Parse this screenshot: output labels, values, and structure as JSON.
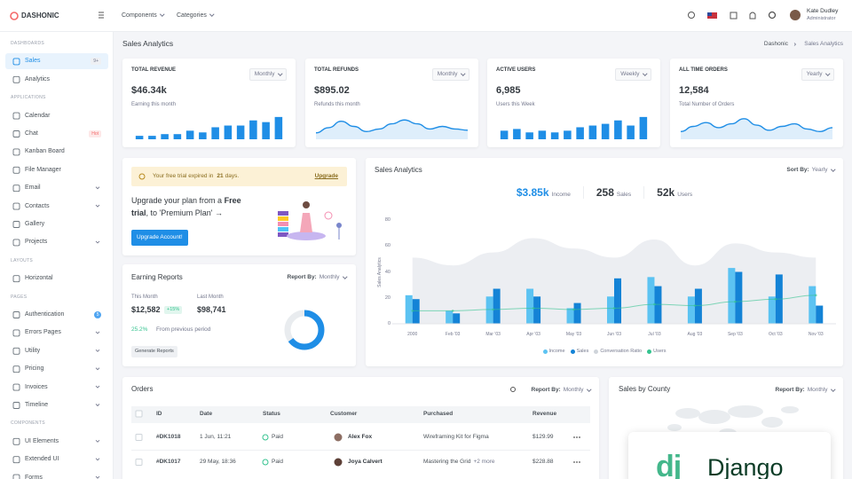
{
  "header": {
    "logo": "DASHONIC",
    "menus": [
      "Components",
      "Categories"
    ],
    "user": {
      "name": "Kate Dudley",
      "role": "Administrator"
    }
  },
  "sidebar": {
    "sections": [
      {
        "title": "DASHBOARDS",
        "items": [
          {
            "label": "Sales",
            "badge": "9+",
            "badge_style": "light",
            "active": true
          },
          {
            "label": "Analytics"
          }
        ]
      },
      {
        "title": "APPLICATIONS",
        "items": [
          {
            "label": "Calendar"
          },
          {
            "label": "Chat",
            "badge": "Hot",
            "badge_style": "danger"
          },
          {
            "label": "Kanban Board"
          },
          {
            "label": "File Manager"
          },
          {
            "label": "Email",
            "submenu": true
          },
          {
            "label": "Contacts",
            "submenu": true
          },
          {
            "label": "Gallery"
          },
          {
            "label": "Projects",
            "submenu": true
          }
        ]
      },
      {
        "title": "LAYOUTS",
        "items": [
          {
            "label": "Horizontal"
          }
        ]
      },
      {
        "title": "PAGES",
        "items": [
          {
            "label": "Authentication",
            "badge": "5",
            "badge_style": "primary"
          },
          {
            "label": "Errors Pages",
            "submenu": true
          },
          {
            "label": "Utility",
            "submenu": true
          },
          {
            "label": "Pricing",
            "submenu": true
          },
          {
            "label": "Invoices",
            "submenu": true
          },
          {
            "label": "Timeline",
            "submenu": true
          }
        ]
      },
      {
        "title": "COMPONENTS",
        "items": [
          {
            "label": "UI Elements",
            "submenu": true
          },
          {
            "label": "Extended UI",
            "submenu": true
          },
          {
            "label": "Forms",
            "submenu": true
          }
        ]
      }
    ]
  },
  "page": {
    "title": "Sales Analytics",
    "breadcrumb": [
      "Dashonic",
      "Sales Analytics"
    ]
  },
  "stats": [
    {
      "label": "TOTAL REVENUE",
      "period": "Monthly",
      "value": "$46.34k",
      "sub": "Earning this month",
      "chart": {
        "type": "bar",
        "color": "#1f8ee6",
        "ylim": [
          0,
          15
        ],
        "values": [
          2,
          2,
          3,
          3,
          5,
          4,
          7,
          8,
          8,
          11,
          10,
          13
        ]
      }
    },
    {
      "label": "TOTAL REFUNDS",
      "period": "Monthly",
      "value": "$895.02",
      "sub": "Refunds this month",
      "chart": {
        "type": "area",
        "color": "#1f8ee6",
        "ylim": [
          0,
          40
        ],
        "values": [
          10,
          18,
          28,
          20,
          12,
          16,
          24,
          30,
          24,
          16,
          20,
          16,
          14
        ]
      }
    },
    {
      "label": "ACTIVE USERS",
      "period": "Weekly",
      "value": "6,985",
      "sub": "Users this Week",
      "chart": {
        "type": "bar",
        "color": "#1f8ee6",
        "ylim": [
          0,
          15
        ],
        "values": [
          5,
          6,
          4,
          5,
          4,
          5,
          7,
          8,
          9,
          11,
          8,
          13
        ]
      }
    },
    {
      "label": "ALL TIME ORDERS",
      "period": "Yearly",
      "value": "12,584",
      "sub": "Total Number of Orders",
      "chart": {
        "type": "area",
        "color": "#1f8ee6",
        "ylim": [
          0,
          40
        ],
        "values": [
          12,
          20,
          26,
          18,
          24,
          32,
          22,
          14,
          20,
          24,
          16,
          12,
          18
        ]
      }
    }
  ],
  "trial": {
    "alert_pre": "Your free trial expired in",
    "alert_days": "21",
    "alert_post": "days.",
    "link": "Upgrade",
    "text_pre": "Upgrade your plan from a",
    "text_bold": "Free trial",
    "text_post": ", to 'Premium Plan' →",
    "button": "Upgrade Account!"
  },
  "earning": {
    "title": "Earning Reports",
    "report_label": "Report By:",
    "report_value": "Monthly",
    "this_label": "This Month",
    "this_value": "$12,582",
    "change": "+15%",
    "last_label": "Last Month",
    "last_value": "$98,741",
    "period_change": "25.2%",
    "period_text": "From previous period",
    "button": "Generate Reports",
    "donut": {
      "colors": [
        "#1f8ee6",
        "#e9ecef"
      ],
      "values": [
        65,
        35
      ]
    }
  },
  "sales_chart": {
    "title": "Sales Analytics",
    "sort_label": "Sort By:",
    "sort_value": "Yearly",
    "summary": [
      {
        "value": "$3.85k",
        "label": "Income"
      },
      {
        "value": "258",
        "label": "Sales"
      },
      {
        "value": "52k",
        "label": "Users"
      }
    ],
    "ylabel": "Sales Analytics",
    "ylim": [
      0,
      80
    ],
    "yticks": [
      0,
      20,
      40,
      60,
      80
    ],
    "categories": [
      "2000",
      "Feb '03",
      "Mar '03",
      "Apr '03",
      "May '03",
      "Jun '03",
      "Jul '03",
      "Aug '03",
      "Sep '03",
      "Oct '03",
      "Nov '03"
    ],
    "series": [
      {
        "name": "Income",
        "type": "bar",
        "color": "#5cc3f2",
        "values": [
          22,
          10,
          21,
          27,
          12,
          21,
          36,
          21,
          43,
          21,
          29
        ]
      },
      {
        "name": "Sales",
        "type": "bar",
        "color": "#1483d6",
        "values": [
          19,
          8,
          27,
          21,
          16,
          35,
          29,
          27,
          40,
          38,
          14
        ]
      },
      {
        "name": "Conversation Ratio",
        "type": "area",
        "color": "#eceef2",
        "values": [
          51,
          45,
          55,
          66,
          58,
          51,
          65,
          45,
          62,
          55,
          51
        ]
      },
      {
        "name": "Users",
        "type": "line",
        "color": "#34c38f",
        "values": [
          10,
          10,
          11,
          12,
          11,
          12,
          15,
          14,
          17,
          19,
          22
        ]
      }
    ]
  },
  "orders": {
    "title": "Orders",
    "report_label": "Report By:",
    "report_value": "Monthly",
    "columns": [
      "ID",
      "Date",
      "Status",
      "Customer",
      "Purchased",
      "Revenue"
    ],
    "rows": [
      {
        "id": "#DK1018",
        "date": "1 Jun, 11:21",
        "status": "Paid",
        "customer": "Alex Fox",
        "purchased": "Wireframing Kit for Figma",
        "extra": "",
        "revenue": "$129.99"
      },
      {
        "id": "#DK1017",
        "date": "29 May, 18:36",
        "status": "Paid",
        "customer": "Joya Calvert",
        "purchased": "Mastering the Grid",
        "extra": "+2 more",
        "revenue": "$228.88"
      }
    ]
  },
  "county": {
    "title": "Sales by County",
    "report_label": "Report By:",
    "report_value": "Monthly"
  },
  "watermark": {
    "logo": "dj",
    "text": "Django"
  }
}
